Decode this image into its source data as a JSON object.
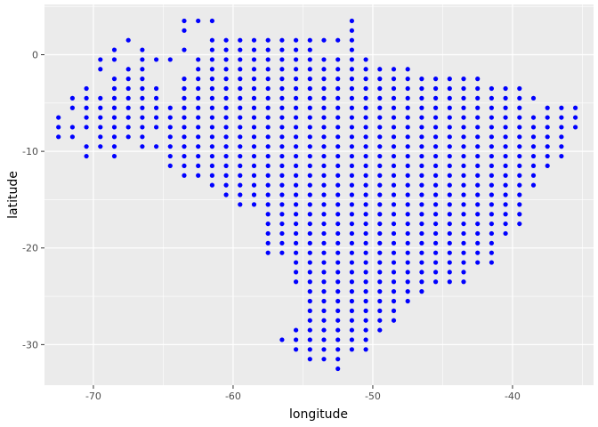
{
  "chart_data": {
    "type": "scatter",
    "xlabel": "longitude",
    "ylabel": "latitude",
    "xlim": [
      -73.5,
      -34.2
    ],
    "ylim": [
      -34.2,
      5.2
    ],
    "x_ticks": [
      -70,
      -60,
      -50,
      -40
    ],
    "y_ticks": [
      0,
      -10,
      -20,
      -30
    ],
    "x_tick_labels": [
      "-70",
      "-60",
      "-50",
      "-40"
    ],
    "y_tick_labels": [
      "0",
      "-10",
      "-20",
      "-30"
    ],
    "grid": true,
    "legend": "none",
    "point_color": "#0000ff",
    "panel_background": "#ebebeb",
    "grid_color": "#ffffff",
    "series": [
      {
        "rows": [
          {
            "lat": 3.5,
            "lons": [
              -63.5,
              -62.5,
              -61.5,
              -51.5
            ]
          },
          {
            "lat": 2.5,
            "lons": [
              -63.5,
              -51.5
            ]
          },
          {
            "lat": 1.5,
            "lons": [
              -67.5,
              -61.5,
              -60.5,
              -59.5,
              -58.5,
              -57.5,
              -56.5,
              -55.5,
              -54.5,
              -53.5,
              -52.5,
              -51.5
            ]
          },
          {
            "lat": 0.5,
            "lons": [
              -68.5,
              -66.5,
              -63.5,
              -61.5,
              -60.5,
              -59.5,
              -58.5,
              -57.5,
              -56.5,
              -55.5,
              -54.5,
              -51.5
            ]
          },
          {
            "lat": -0.5,
            "lons": [
              -69.5,
              -68.5,
              -66.5,
              -65.5,
              -64.5,
              -62.5,
              -61.5,
              -60.5,
              -59.5,
              -58.5,
              -57.5,
              -56.5,
              -55.5,
              -54.5,
              -53.5,
              -52.5,
              -51.5,
              -50.5
            ]
          },
          {
            "lat": -1.5,
            "lons": [
              -69.5,
              -67.5,
              -66.5,
              -62.5,
              -61.5,
              -60.5,
              -59.5,
              -58.5,
              -57.5,
              -56.5,
              -55.5,
              -54.5,
              -53.5,
              -52.5,
              -51.5,
              -50.5,
              -49.5,
              -48.5,
              -47.5
            ]
          },
          {
            "lat": -2.5,
            "lons": [
              -68.5,
              -67.5,
              -66.5,
              -63.5,
              -62.5,
              -61.5,
              -60.5,
              -59.5,
              -58.5,
              -57.5,
              -56.5,
              -55.5,
              -54.5,
              -53.5,
              -52.5,
              -51.5,
              -50.5,
              -49.5,
              -48.5,
              -47.5,
              -46.5,
              -45.5,
              -44.5,
              -43.5,
              -42.5
            ]
          },
          {
            "lat": -3.5,
            "lons": [
              -70.5,
              -68.5,
              -67.5,
              -66.5,
              -65.5,
              -63.5,
              -62.5,
              -61.5,
              -60.5,
              -59.5,
              -58.5,
              -57.5,
              -56.5,
              -55.5,
              -54.5,
              -53.5,
              -52.5,
              -51.5,
              -50.5,
              -49.5,
              -48.5,
              -47.5,
              -46.5,
              -45.5,
              -44.5,
              -43.5,
              -42.5,
              -41.5,
              -40.5,
              -39.5
            ]
          },
          {
            "lat": -4.5,
            "lons": [
              -71.5,
              -70.5,
              -69.5,
              -68.5,
              -67.5,
              -66.5,
              -65.5,
              -63.5,
              -62.5,
              -61.5,
              -60.5,
              -59.5,
              -58.5,
              -57.5,
              -56.5,
              -55.5,
              -54.5,
              -53.5,
              -52.5,
              -51.5,
              -50.5,
              -49.5,
              -48.5,
              -47.5,
              -46.5,
              -45.5,
              -44.5,
              -43.5,
              -42.5,
              -41.5,
              -40.5,
              -39.5,
              -38.5
            ]
          },
          {
            "lat": -5.5,
            "lons": [
              -71.5,
              -70.5,
              -69.5,
              -68.5,
              -67.5,
              -66.5,
              -65.5,
              -64.5,
              -63.5,
              -62.5,
              -61.5,
              -60.5,
              -59.5,
              -58.5,
              -57.5,
              -56.5,
              -55.5,
              -54.5,
              -53.5,
              -52.5,
              -51.5,
              -50.5,
              -49.5,
              -48.5,
              -47.5,
              -46.5,
              -45.5,
              -44.5,
              -43.5,
              -42.5,
              -41.5,
              -40.5,
              -39.5,
              -37.5,
              -36.5,
              -35.5
            ]
          },
          {
            "lat": -6.5,
            "lons": [
              -72.5,
              -70.5,
              -69.5,
              -68.5,
              -67.5,
              -66.5,
              -65.5,
              -64.5,
              -63.5,
              -62.5,
              -61.5,
              -60.5,
              -59.5,
              -58.5,
              -57.5,
              -56.5,
              -55.5,
              -54.5,
              -53.5,
              -52.5,
              -51.5,
              -50.5,
              -49.5,
              -48.5,
              -47.5,
              -46.5,
              -45.5,
              -44.5,
              -43.5,
              -42.5,
              -41.5,
              -40.5,
              -39.5,
              -38.5,
              -37.5,
              -36.5,
              -35.5
            ]
          },
          {
            "lat": -7.5,
            "lons": [
              -72.5,
              -71.5,
              -70.5,
              -69.5,
              -68.5,
              -67.5,
              -66.5,
              -65.5,
              -64.5,
              -63.5,
              -62.5,
              -61.5,
              -60.5,
              -59.5,
              -58.5,
              -57.5,
              -56.5,
              -55.5,
              -54.5,
              -53.5,
              -52.5,
              -51.5,
              -50.5,
              -49.5,
              -48.5,
              -47.5,
              -46.5,
              -45.5,
              -44.5,
              -43.5,
              -42.5,
              -41.5,
              -40.5,
              -39.5,
              -38.5,
              -37.5,
              -36.5,
              -35.5
            ]
          },
          {
            "lat": -8.5,
            "lons": [
              -72.5,
              -71.5,
              -69.5,
              -68.5,
              -67.5,
              -66.5,
              -64.5,
              -63.5,
              -62.5,
              -61.5,
              -60.5,
              -59.5,
              -58.5,
              -57.5,
              -56.5,
              -55.5,
              -54.5,
              -53.5,
              -52.5,
              -51.5,
              -50.5,
              -49.5,
              -48.5,
              -47.5,
              -46.5,
              -45.5,
              -44.5,
              -43.5,
              -42.5,
              -41.5,
              -40.5,
              -39.5,
              -38.5,
              -37.5,
              -36.5
            ]
          },
          {
            "lat": -9.5,
            "lons": [
              -70.5,
              -69.5,
              -68.5,
              -66.5,
              -65.5,
              -64.5,
              -63.5,
              -62.5,
              -61.5,
              -60.5,
              -59.5,
              -58.5,
              -57.5,
              -56.5,
              -55.5,
              -54.5,
              -53.5,
              -52.5,
              -51.5,
              -50.5,
              -49.5,
              -48.5,
              -47.5,
              -46.5,
              -45.5,
              -44.5,
              -43.5,
              -42.5,
              -41.5,
              -40.5,
              -39.5,
              -38.5,
              -37.5,
              -36.5
            ]
          },
          {
            "lat": -10.5,
            "lons": [
              -70.5,
              -68.5,
              -64.5,
              -63.5,
              -62.5,
              -61.5,
              -60.5,
              -59.5,
              -58.5,
              -57.5,
              -56.5,
              -55.5,
              -54.5,
              -53.5,
              -52.5,
              -51.5,
              -50.5,
              -49.5,
              -48.5,
              -47.5,
              -46.5,
              -45.5,
              -44.5,
              -43.5,
              -42.5,
              -41.5,
              -40.5,
              -39.5,
              -38.5,
              -37.5,
              -36.5
            ]
          },
          {
            "lat": -11.5,
            "lons": [
              -64.5,
              -63.5,
              -62.5,
              -61.5,
              -60.5,
              -59.5,
              -58.5,
              -57.5,
              -56.5,
              -55.5,
              -54.5,
              -53.5,
              -52.5,
              -51.5,
              -50.5,
              -49.5,
              -48.5,
              -47.5,
              -46.5,
              -45.5,
              -44.5,
              -43.5,
              -42.5,
              -41.5,
              -40.5,
              -39.5,
              -38.5,
              -37.5
            ]
          },
          {
            "lat": -12.5,
            "lons": [
              -63.5,
              -62.5,
              -61.5,
              -60.5,
              -59.5,
              -58.5,
              -57.5,
              -56.5,
              -55.5,
              -54.5,
              -53.5,
              -52.5,
              -51.5,
              -50.5,
              -49.5,
              -48.5,
              -47.5,
              -46.5,
              -45.5,
              -44.5,
              -43.5,
              -42.5,
              -41.5,
              -40.5,
              -39.5,
              -38.5
            ]
          },
          {
            "lat": -13.5,
            "lons": [
              -61.5,
              -60.5,
              -59.5,
              -58.5,
              -57.5,
              -56.5,
              -55.5,
              -54.5,
              -53.5,
              -52.5,
              -51.5,
              -50.5,
              -49.5,
              -48.5,
              -47.5,
              -46.5,
              -45.5,
              -44.5,
              -43.5,
              -42.5,
              -41.5,
              -40.5,
              -39.5,
              -38.5
            ]
          },
          {
            "lat": -14.5,
            "lons": [
              -60.5,
              -59.5,
              -58.5,
              -57.5,
              -56.5,
              -55.5,
              -54.5,
              -53.5,
              -52.5,
              -51.5,
              -50.5,
              -49.5,
              -48.5,
              -47.5,
              -46.5,
              -45.5,
              -44.5,
              -43.5,
              -42.5,
              -41.5,
              -40.5,
              -39.5
            ]
          },
          {
            "lat": -15.5,
            "lons": [
              -59.5,
              -58.5,
              -57.5,
              -56.5,
              -55.5,
              -54.5,
              -53.5,
              -52.5,
              -51.5,
              -50.5,
              -49.5,
              -48.5,
              -47.5,
              -46.5,
              -45.5,
              -44.5,
              -43.5,
              -42.5,
              -41.5,
              -40.5,
              -39.5
            ]
          },
          {
            "lat": -16.5,
            "lons": [
              -57.5,
              -56.5,
              -55.5,
              -54.5,
              -53.5,
              -52.5,
              -51.5,
              -50.5,
              -49.5,
              -48.5,
              -47.5,
              -46.5,
              -45.5,
              -44.5,
              -43.5,
              -42.5,
              -41.5,
              -40.5,
              -39.5
            ]
          },
          {
            "lat": -17.5,
            "lons": [
              -57.5,
              -56.5,
              -55.5,
              -54.5,
              -53.5,
              -52.5,
              -51.5,
              -50.5,
              -49.5,
              -48.5,
              -47.5,
              -46.5,
              -45.5,
              -44.5,
              -43.5,
              -42.5,
              -41.5,
              -40.5,
              -39.5
            ]
          },
          {
            "lat": -18.5,
            "lons": [
              -57.5,
              -56.5,
              -55.5,
              -54.5,
              -53.5,
              -52.5,
              -51.5,
              -50.5,
              -49.5,
              -48.5,
              -47.5,
              -46.5,
              -45.5,
              -44.5,
              -43.5,
              -42.5,
              -41.5,
              -40.5
            ]
          },
          {
            "lat": -19.5,
            "lons": [
              -57.5,
              -56.5,
              -55.5,
              -54.5,
              -53.5,
              -52.5,
              -51.5,
              -50.5,
              -49.5,
              -48.5,
              -47.5,
              -46.5,
              -45.5,
              -44.5,
              -43.5,
              -42.5,
              -41.5
            ]
          },
          {
            "lat": -20.5,
            "lons": [
              -57.5,
              -56.5,
              -55.5,
              -54.5,
              -53.5,
              -52.5,
              -51.5,
              -50.5,
              -49.5,
              -48.5,
              -47.5,
              -46.5,
              -45.5,
              -44.5,
              -43.5,
              -42.5,
              -41.5
            ]
          },
          {
            "lat": -21.5,
            "lons": [
              -55.5,
              -54.5,
              -53.5,
              -52.5,
              -51.5,
              -50.5,
              -49.5,
              -48.5,
              -47.5,
              -46.5,
              -45.5,
              -44.5,
              -43.5,
              -42.5,
              -41.5
            ]
          },
          {
            "lat": -22.5,
            "lons": [
              -55.5,
              -54.5,
              -53.5,
              -52.5,
              -51.5,
              -50.5,
              -49.5,
              -48.5,
              -47.5,
              -46.5,
              -45.5,
              -44.5,
              -43.5
            ]
          },
          {
            "lat": -23.5,
            "lons": [
              -55.5,
              -54.5,
              -53.5,
              -52.5,
              -51.5,
              -50.5,
              -49.5,
              -48.5,
              -47.5,
              -46.5,
              -45.5,
              -44.5,
              -43.5
            ]
          },
          {
            "lat": -24.5,
            "lons": [
              -54.5,
              -53.5,
              -52.5,
              -51.5,
              -50.5,
              -49.5,
              -48.5,
              -47.5,
              -46.5
            ]
          },
          {
            "lat": -25.5,
            "lons": [
              -54.5,
              -53.5,
              -52.5,
              -51.5,
              -50.5,
              -49.5,
              -48.5,
              -47.5
            ]
          },
          {
            "lat": -26.5,
            "lons": [
              -54.5,
              -53.5,
              -52.5,
              -51.5,
              -50.5,
              -49.5,
              -48.5
            ]
          },
          {
            "lat": -27.5,
            "lons": [
              -54.5,
              -53.5,
              -52.5,
              -51.5,
              -50.5,
              -49.5,
              -48.5
            ]
          },
          {
            "lat": -28.5,
            "lons": [
              -55.5,
              -54.5,
              -53.5,
              -52.5,
              -51.5,
              -50.5,
              -49.5
            ]
          },
          {
            "lat": -29.5,
            "lons": [
              -56.5,
              -55.5,
              -54.5,
              -53.5,
              -52.5,
              -51.5,
              -50.5
            ]
          },
          {
            "lat": -30.5,
            "lons": [
              -55.5,
              -54.5,
              -53.5,
              -52.5,
              -51.5,
              -50.5
            ]
          },
          {
            "lat": -31.5,
            "lons": [
              -54.5,
              -53.5,
              -52.5
            ]
          },
          {
            "lat": -32.5,
            "lons": [
              -52.5
            ]
          }
        ]
      }
    ]
  }
}
